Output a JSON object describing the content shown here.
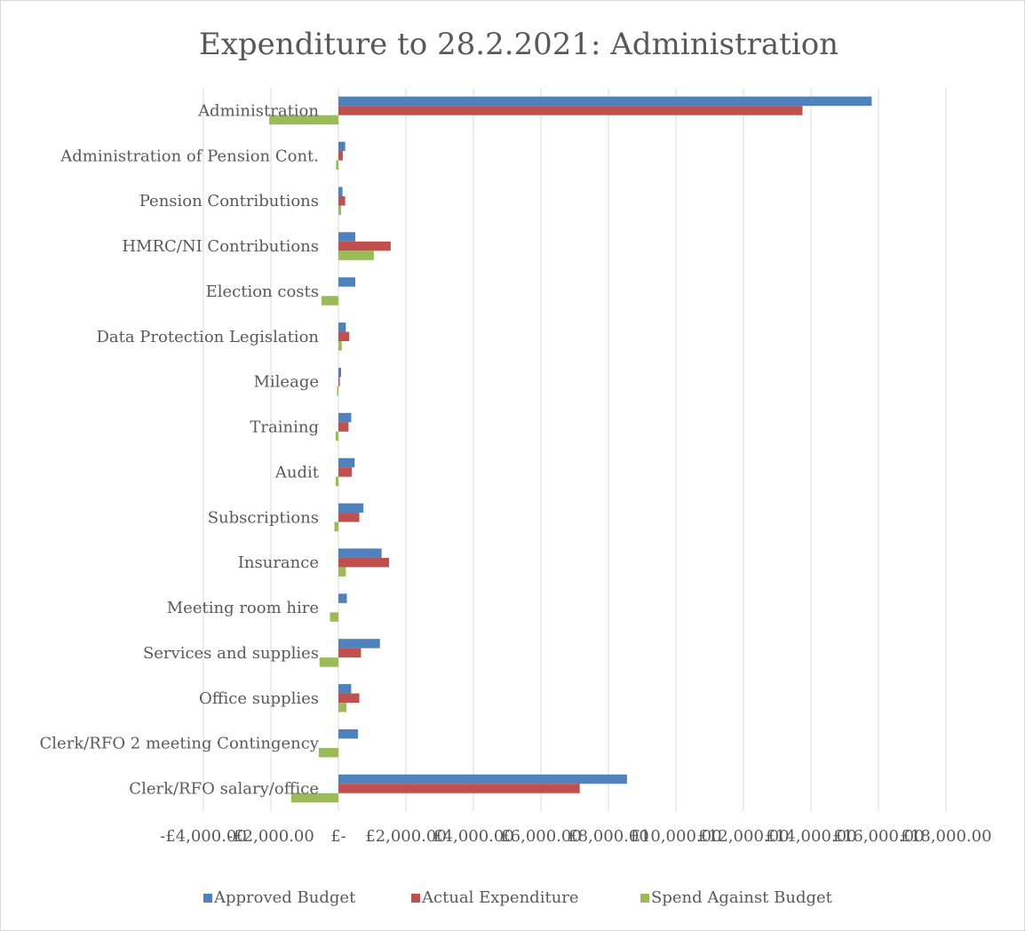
{
  "chart_data": {
    "type": "bar",
    "orientation": "horizontal",
    "title": "Expenditure to 28.2.2021: Administration",
    "xlabel": "",
    "ylabel": "",
    "xlim": [
      -4000,
      18000
    ],
    "grid": true,
    "legend_position": "bottom",
    "x_ticks": [
      -4000,
      -2000,
      0,
      2000,
      4000,
      6000,
      8000,
      10000,
      12000,
      14000,
      16000,
      18000
    ],
    "x_tick_labels": [
      "-£4,000.00",
      "-£2,000.00",
      "£-",
      "£2,000.00",
      "£4,000.00",
      "£6,000.00",
      "£8,000.00",
      "£10,000.00",
      "£12,000.00",
      "£14,000.00",
      "£16,000.00",
      "£18,000.00"
    ],
    "categories": [
      "Administration",
      "Administration of Pension Cont.",
      "Pension Contributions",
      "HMRC/NI Contributions",
      "Election costs",
      "Data Protection Legislation",
      "Mileage",
      "Training",
      "Audit",
      "Subscriptions",
      "Insurance",
      "Meeting room hire",
      "Services and supplies",
      "Office supplies",
      "Clerk/RFO 2 meeting Contingency",
      "Clerk/RFO salary/office"
    ],
    "series": [
      {
        "name": "Approved Budget",
        "color": "#4f81bd",
        "values": [
          15800,
          200,
          120,
          500,
          500,
          220,
          80,
          380,
          480,
          740,
          1280,
          250,
          1230,
          380,
          580,
          8550
        ]
      },
      {
        "name": "Actual Expenditure",
        "color": "#c0504d",
        "values": [
          13750,
          130,
          200,
          1550,
          0,
          320,
          40,
          300,
          400,
          620,
          1500,
          0,
          670,
          620,
          0,
          7150
        ]
      },
      {
        "name": "Spend Against Budget",
        "color": "#9bbb59",
        "values": [
          -2050,
          -70,
          80,
          1050,
          -500,
          100,
          -40,
          -80,
          -80,
          -120,
          220,
          -250,
          -560,
          240,
          -580,
          -1400
        ]
      }
    ]
  }
}
